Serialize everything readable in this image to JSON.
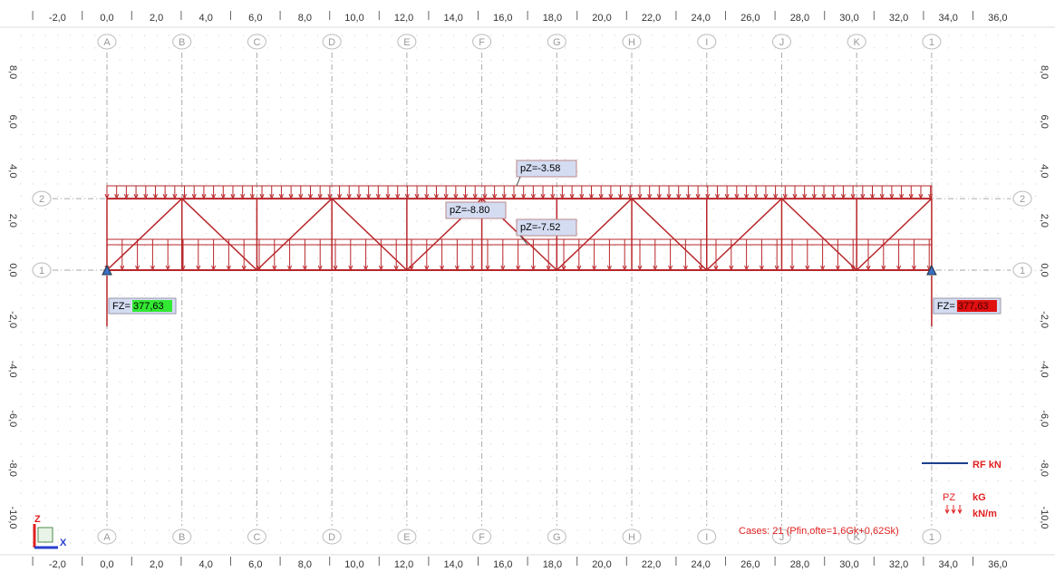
{
  "ruler": {
    "x_labels": [
      "-2,0",
      "0,0",
      "2,0",
      "4,0",
      "6,0",
      "8,0",
      "10,0",
      "12,0",
      "14,0",
      "16,0",
      "18,0",
      "20,0",
      "22,0",
      "24,0",
      "26,0",
      "28,0",
      "30,0",
      "32,0",
      "34,0",
      "36,0"
    ],
    "y_labels": [
      "8,0",
      "6,0",
      "4,0",
      "2,0",
      "0,0",
      "-2,0",
      "-4,0",
      "-6,0",
      "-8,0",
      "-10,0"
    ]
  },
  "grid_axes": {
    "columns": [
      "A",
      "B",
      "C",
      "D",
      "E",
      "F",
      "G",
      "H",
      "I",
      "J",
      "K",
      "1"
    ],
    "rows": [
      "2",
      "1"
    ]
  },
  "annotations": {
    "pz_top": "pZ=-3.58",
    "pz_mid": "pZ=-8.80",
    "pz_bottom": "pZ=-7.52"
  },
  "reactions": [
    {
      "label": "FZ=",
      "value": "377,63"
    },
    {
      "label": "FZ=",
      "value": "377,63"
    }
  ],
  "legend": {
    "rf": "RF kN",
    "pz": "PZ",
    "kg": "kG",
    "knm": "kN/m"
  },
  "cases": "Cases: 21 (Pfin,ofte=1,6Gk+0,62Sk)",
  "axes": {
    "z": "Z",
    "x": "X"
  }
}
